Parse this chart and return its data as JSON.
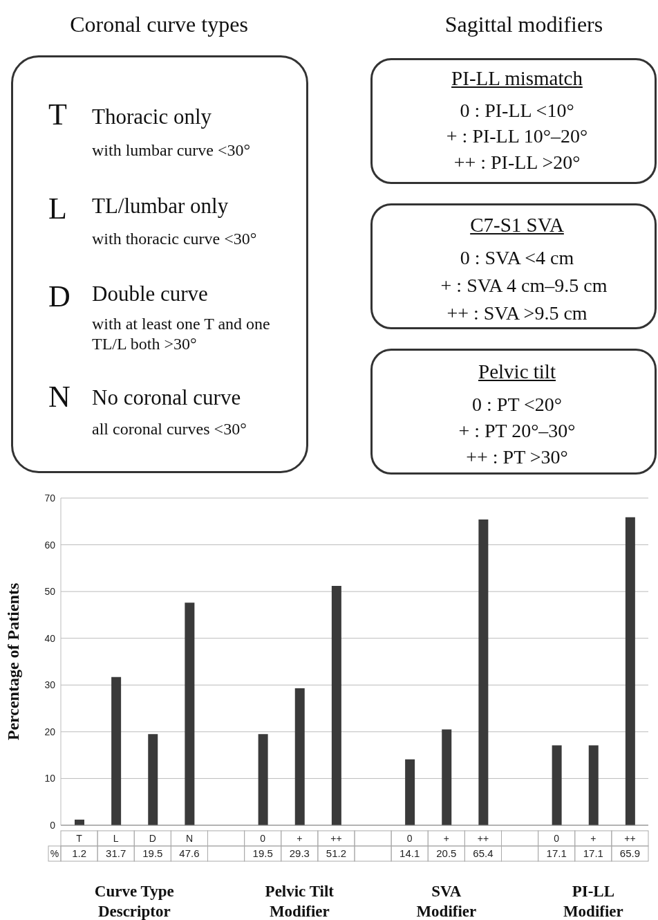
{
  "chart_data": {
    "type": "bar",
    "ylabel": "Percentage of Patients",
    "categories": [
      "T",
      "L",
      "D",
      "N",
      null,
      "0",
      "+",
      "++",
      null,
      "0",
      "+",
      "++",
      null,
      "0",
      "+",
      "++"
    ],
    "values": [
      1.2,
      31.7,
      19.5,
      47.6,
      null,
      19.5,
      29.3,
      51.2,
      null,
      14.1,
      20.5,
      65.4,
      null,
      17.1,
      17.1,
      65.9
    ],
    "color": "#3a3a3a",
    "ylim": [
      0,
      70
    ],
    "yticks": [
      0,
      10,
      20,
      30,
      40,
      50,
      60,
      70
    ],
    "grid": "y",
    "data_labels": true,
    "annotations": [
      "Coronal curve types",
      "Sagittal modifiers",
      "T",
      "Thoracic only",
      "with lumbar curve <30°",
      "L",
      "TL/lumbar only",
      "with thoracic curve <30°",
      "D",
      "Double curve",
      "with at least one T and one TL/L both >30°",
      "N",
      "No coronal curve",
      "all coronal curves <30°",
      "PI-LL mismatch",
      "0 : PI-LL <10°",
      "+ : PI-LL 10°–20°",
      "++ : PI-LL >20°",
      "C7-S1 SVA",
      "0 : SVA <4 cm",
      "+ : SVA 4 cm–9.5 cm",
      "++ : SVA >9.5 cm",
      "Pelvic tilt",
      "0 : PT <20°",
      "+ : PT 20°–30°",
      "++ : PT >30°",
      "%",
      "Curve Type Descriptor",
      "Pelvic Tilt Modifier",
      "SVA Modifier",
      "PI-LL Modifier"
    ]
  }
}
